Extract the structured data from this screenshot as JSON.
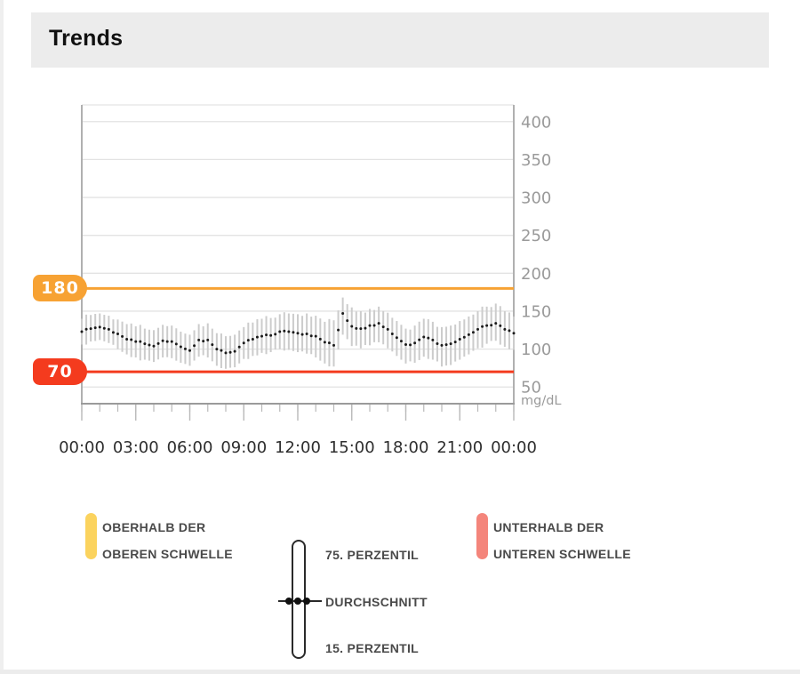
{
  "header": {
    "title": "Trends"
  },
  "chart_data": {
    "type": "line",
    "title": "Trends",
    "x_tick_labels": [
      "00:00",
      "03:00",
      "06:00",
      "09:00",
      "12:00",
      "15:00",
      "18:00",
      "21:00",
      "00:00"
    ],
    "x_major_tick_hours": [
      0,
      3,
      6,
      9,
      12,
      15,
      18,
      21,
      24
    ],
    "x_minor_tick_step_hours": 1,
    "xlim_hours": [
      0,
      24
    ],
    "y_tick_labels": [
      400,
      350,
      300,
      250,
      200,
      150,
      100,
      50
    ],
    "y_axis_unit": "mg/dL",
    "ylim": [
      28,
      422
    ],
    "grid": "horizontal",
    "legend_position": "bottom",
    "sample_step_hours": 0.5,
    "series": [
      {
        "name": "Durchschnitt",
        "role": "average",
        "values": [
          123,
          127,
          129,
          126,
          120,
          113,
          110,
          107,
          104,
          111,
          110,
          103,
          98,
          112,
          112,
          100,
          95,
          97,
          108,
          113,
          117,
          118,
          123,
          123,
          121,
          120,
          117,
          109,
          105,
          147,
          130,
          127,
          131,
          134,
          126,
          115,
          106,
          108,
          116,
          112,
          105,
          107,
          113,
          119,
          126,
          131,
          134,
          126,
          121
        ]
      },
      {
        "name": "75. Perzentil",
        "role": "band-upper",
        "values": [
          140,
          145,
          147,
          144,
          139,
          133,
          130,
          127,
          125,
          132,
          131,
          123,
          119,
          133,
          134,
          121,
          117,
          119,
          129,
          135,
          140,
          141,
          146,
          147,
          146,
          147,
          144,
          136,
          138,
          168,
          155,
          150,
          153,
          156,
          148,
          137,
          127,
          131,
          140,
          136,
          129,
          131,
          137,
          143,
          150,
          156,
          160,
          150,
          143
        ]
      },
      {
        "name": "15. Perzentil",
        "role": "band-lower",
        "values": [
          106,
          110,
          112,
          108,
          100,
          93,
          89,
          86,
          83,
          89,
          88,
          82,
          78,
          90,
          89,
          78,
          74,
          76,
          87,
          91,
          95,
          96,
          100,
          99,
          96,
          94,
          89,
          81,
          77,
          119,
          104,
          101,
          105,
          109,
          101,
          91,
          81,
          82,
          90,
          86,
          77,
          79,
          86,
          93,
          101,
          107,
          111,
          103,
          99
        ]
      }
    ],
    "thresholds": {
      "upper": {
        "label": "180",
        "value": 180,
        "color": "#F7A233"
      },
      "lower": {
        "label": "70",
        "value": 70,
        "color": "#F43B1E"
      }
    }
  },
  "legend": {
    "above_threshold": {
      "line1": "OBERHALB DER",
      "line2": "OBEREN SCHWELLE",
      "color": "#FBD35E"
    },
    "below_threshold": {
      "line1": "UNTERHALB DER",
      "line2": "UNTEREN SCHWELLE",
      "color": "#F4857B"
    },
    "percentile_upper_label": "75. PERZENTIL",
    "average_label": "DURCHSCHNITT",
    "percentile_lower_label": "15. PERZENTIL"
  },
  "colors": {
    "bar": "#cccccc",
    "dot": "#1c1c1c",
    "grid": "#e3e3e3",
    "axis": "#b0b0b0",
    "axis_bottom": "#9a9a9a",
    "tick": "#b9b9b9",
    "y_label": "#9a9a9a",
    "x_label": "#2e2e2e",
    "unit_label": "#9a9a9a"
  }
}
